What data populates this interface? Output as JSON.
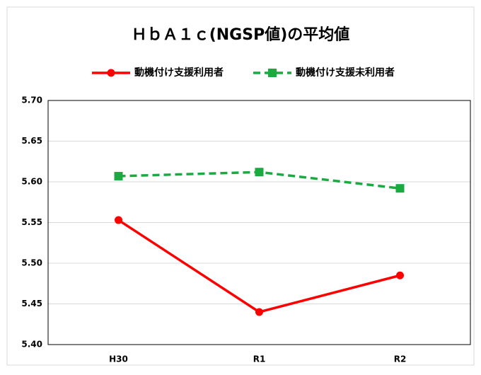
{
  "chart_data": {
    "type": "line",
    "title": "ＨｂＡ１ｃ(NGSP値)の平均値",
    "categories": [
      "H30",
      "R1",
      "R2"
    ],
    "series": [
      {
        "name": "動機付け支援利用者",
        "color": "#ff0000",
        "line_style": "solid",
        "marker": "circle",
        "values": [
          5.553,
          5.44,
          5.485
        ]
      },
      {
        "name": "動機付け支援未利用者",
        "color": "#1aab40",
        "line_style": "dashed",
        "marker": "square",
        "values": [
          5.607,
          5.612,
          5.592
        ]
      }
    ],
    "ylim": [
      5.4,
      5.7
    ],
    "yticks": [
      {
        "value": 5.4,
        "label": "5.40"
      },
      {
        "value": 5.45,
        "label": "5.45"
      },
      {
        "value": 5.5,
        "label": "5.50"
      },
      {
        "value": 5.55,
        "label": "5.55"
      },
      {
        "value": 5.6,
        "label": "5.60"
      },
      {
        "value": 5.65,
        "label": "5.65"
      },
      {
        "value": 5.7,
        "label": "5.70"
      }
    ],
    "grid": true,
    "legend": "top"
  }
}
